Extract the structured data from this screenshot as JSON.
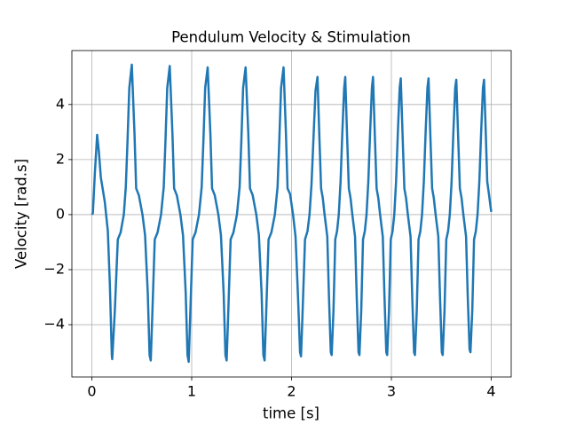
{
  "chart_data": {
    "type": "line",
    "title": "Pendulum Velocity & Stimulation",
    "x_label": "time [s]",
    "y_label": "Velocity [rad.s]",
    "xlim": [
      -0.2,
      4.2
    ],
    "ylim": [
      -5.9,
      5.96
    ],
    "xticks": [
      0,
      1,
      2,
      3,
      4
    ],
    "yticks": [
      {
        "value": -4,
        "label": "−4"
      },
      {
        "value": -2,
        "label": "−2"
      },
      0,
      2,
      4
    ],
    "grid": true,
    "x": [
      0,
      0.01,
      0.03,
      0.053,
      0.07,
      0.09,
      0.13,
      0.16,
      0.18,
      0.2,
      0.204,
      0.23,
      0.26,
      0.288,
      0.32,
      0.34,
      0.357,
      0.375,
      0.4,
      0.427,
      0.444,
      0.471,
      0.507,
      0.533,
      0.56,
      0.578,
      0.59,
      0.604,
      0.63,
      0.658,
      0.693,
      0.72,
      0.737,
      0.755,
      0.78,
      0.807,
      0.824,
      0.851,
      0.887,
      0.913,
      0.94,
      0.958,
      0.97,
      0.984,
      1.01,
      1.038,
      1.073,
      1.1,
      1.117,
      1.135,
      1.16,
      1.187,
      1.204,
      1.231,
      1.267,
      1.293,
      1.32,
      1.338,
      1.35,
      1.364,
      1.39,
      1.418,
      1.453,
      1.48,
      1.497,
      1.515,
      1.54,
      1.567,
      1.584,
      1.611,
      1.647,
      1.673,
      1.7,
      1.718,
      1.73,
      1.744,
      1.77,
      1.798,
      1.833,
      1.86,
      1.877,
      1.895,
      1.92,
      1.944,
      1.96,
      1.985,
      2.015,
      2.04,
      2.065,
      2.085,
      2.095,
      2.11,
      2.135,
      2.16,
      2.18,
      2.2,
      2.22,
      2.24,
      2.26,
      2.278,
      2.296,
      2.313,
      2.331,
      2.358,
      2.375,
      2.393,
      2.402,
      2.42,
      2.438,
      2.456,
      2.473,
      2.491,
      2.509,
      2.527,
      2.538,
      2.556,
      2.574,
      2.591,
      2.609,
      2.636,
      2.653,
      2.671,
      2.68,
      2.698,
      2.716,
      2.734,
      2.751,
      2.769,
      2.787,
      2.805,
      2.816,
      2.834,
      2.852,
      2.869,
      2.887,
      2.914,
      2.931,
      2.949,
      2.958,
      2.976,
      2.994,
      3.012,
      3.029,
      3.047,
      3.065,
      3.083,
      3.094,
      3.112,
      3.13,
      3.147,
      3.165,
      3.192,
      3.209,
      3.227,
      3.236,
      3.254,
      3.272,
      3.29,
      3.307,
      3.325,
      3.343,
      3.361,
      3.372,
      3.39,
      3.408,
      3.425,
      3.443,
      3.47,
      3.487,
      3.505,
      3.514,
      3.532,
      3.55,
      3.568,
      3.585,
      3.603,
      3.621,
      3.639,
      3.65,
      3.668,
      3.686,
      3.703,
      3.721,
      3.748,
      3.765,
      3.783,
      3.792,
      3.81,
      3.828,
      3.846,
      3.863,
      3.881,
      3.899,
      3.917,
      3.928,
      3.946,
      3.96,
      3.975,
      4.0
    ],
    "series": [
      {
        "color": "#1f77b4",
        "values": [
          0,
          0.05,
          1.5,
          2.9,
          2.3,
          1.35,
          0.45,
          -0.6,
          -2.5,
          -5.1,
          -5.25,
          -3.5,
          -0.9,
          -0.65,
          0,
          1,
          2.65,
          4.6,
          5.45,
          2.95,
          0.95,
          0.7,
          0,
          -0.75,
          -2.85,
          -5.1,
          -5.3,
          -3.8,
          -0.9,
          -0.65,
          0,
          1,
          2.65,
          4.6,
          5.4,
          2.95,
          0.95,
          0.7,
          0,
          -0.75,
          -2.85,
          -5.1,
          -5.35,
          -3.8,
          -0.9,
          -0.65,
          0,
          1,
          2.65,
          4.6,
          5.35,
          2.95,
          0.95,
          0.7,
          0,
          -0.75,
          -2.85,
          -5.1,
          -5.3,
          -3.8,
          -0.9,
          -0.65,
          0,
          1,
          2.65,
          4.6,
          5.35,
          2.95,
          0.95,
          0.7,
          0,
          -0.75,
          -2.85,
          -5.1,
          -5.3,
          -3.8,
          -0.9,
          -0.65,
          0,
          1,
          2.65,
          4.6,
          5.35,
          2.95,
          0.95,
          0.75,
          0,
          -0.8,
          -3,
          -5,
          -5.15,
          -3.6,
          -0.9,
          -0.6,
          0,
          1.1,
          2.8,
          4.5,
          5,
          2.9,
          0.95,
          0.6,
          0,
          -0.8,
          -3,
          -5,
          -5.1,
          -3.5,
          -0.9,
          -0.6,
          0,
          1.2,
          3,
          4.6,
          5,
          2.9,
          0.95,
          0.6,
          0,
          -0.8,
          -3,
          -5,
          -5.1,
          -3.5,
          -0.9,
          -0.6,
          0,
          1.2,
          3,
          4.6,
          5,
          2.9,
          0.95,
          0.6,
          0,
          -0.8,
          -3,
          -5,
          -5.1,
          -3.5,
          -0.9,
          -0.6,
          0,
          1.2,
          3,
          4.6,
          4.95,
          2.9,
          0.95,
          0.6,
          0,
          -0.8,
          -3,
          -5,
          -5.1,
          -3.5,
          -0.9,
          -0.6,
          0,
          1.2,
          3,
          4.6,
          4.95,
          2.9,
          0.95,
          0.6,
          0,
          -0.8,
          -3,
          -5,
          -5.1,
          -3.5,
          -0.9,
          -0.6,
          0,
          1.2,
          3,
          4.6,
          4.9,
          2.9,
          0.95,
          0.6,
          0,
          -0.8,
          -3,
          -4.9,
          -5,
          -3.5,
          -0.9,
          -0.6,
          0,
          1.2,
          3,
          4.6,
          4.9,
          2.9,
          1.2,
          0.8,
          0.1
        ]
      }
    ]
  }
}
